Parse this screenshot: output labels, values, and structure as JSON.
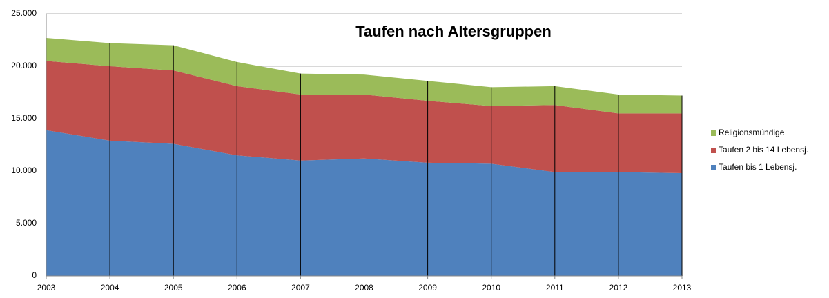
{
  "chart_data": {
    "type": "stacked-area",
    "title": "Taufen nach Altersgruppen",
    "x": [
      2003,
      2004,
      2005,
      2006,
      2007,
      2008,
      2009,
      2010,
      2011,
      2012,
      2013
    ],
    "xlim": [
      2003,
      2013
    ],
    "xticks": [
      2003,
      2004,
      2005,
      2006,
      2007,
      2008,
      2009,
      2010,
      2011,
      2012,
      2013
    ],
    "ylim": [
      0,
      25000
    ],
    "yticks": [
      0,
      {
        "value": 5000,
        "label": "5.000"
      },
      {
        "value": 10000,
        "label": "10.000"
      },
      {
        "value": 15000,
        "label": "15.000"
      },
      {
        "value": 20000,
        "label": "20.000"
      },
      {
        "value": 25000,
        "label": "25.000"
      }
    ],
    "grid": true,
    "legend": "right",
    "series": [
      {
        "name": "Taufen bis 1 Lebensj.",
        "color": "#4f81bd",
        "values": [
          13900,
          12900,
          12600,
          11500,
          11000,
          11200,
          10800,
          10700,
          9900,
          9900,
          9800
        ]
      },
      {
        "name": "Taufen 2 bis 14 Lebensj.",
        "color": "#c0504d",
        "values": [
          6600,
          7100,
          7000,
          6600,
          6300,
          6100,
          5900,
          5500,
          6400,
          5600,
          5700
        ]
      },
      {
        "name": "Religionsmündige",
        "color": "#9bbb59",
        "values": [
          2200,
          2200,
          2400,
          2300,
          2000,
          1900,
          1900,
          1800,
          1800,
          1800,
          1700
        ]
      }
    ]
  }
}
